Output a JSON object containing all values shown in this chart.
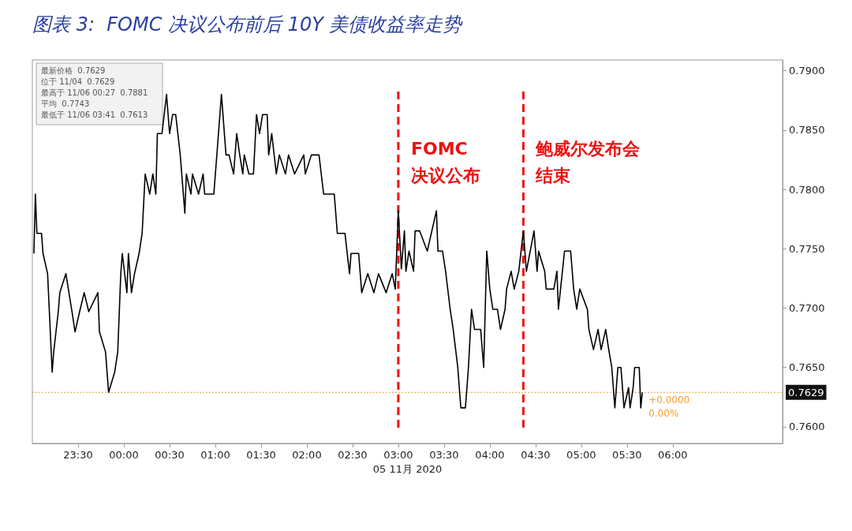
{
  "chart_data": {
    "type": "line",
    "title": "图表 3:  FOMC 决议公布前后 10Y 美债收益率走势",
    "xlabel": "05 11月 2020",
    "x": [
      "2020-11-04T23:01",
      "2020-11-04T23:02",
      "2020-11-04T23:03",
      "2020-11-04T23:06",
      "2020-11-04T23:07",
      "2020-11-04T23:10",
      "2020-11-04T23:13",
      "2020-11-04T23:14",
      "2020-11-04T23:17",
      "2020-11-04T23:18",
      "2020-11-04T23:22",
      "2020-11-04T23:26",
      "2020-11-04T23:28",
      "2020-11-04T23:31",
      "2020-11-04T23:34",
      "2020-11-04T23:37",
      "2020-11-04T23:43",
      "2020-11-04T23:44",
      "2020-11-04T23:48",
      "2020-11-04T23:50",
      "2020-11-04T23:54",
      "2020-11-04T23:56",
      "2020-11-04T23:58",
      "2020-11-04T23:59",
      "2020-11-05T00:02",
      "2020-11-05T00:03",
      "2020-11-05T00:05",
      "2020-11-05T00:07",
      "2020-11-05T00:10",
      "2020-11-05T00:12",
      "2020-11-05T00:14",
      "2020-11-05T00:17",
      "2020-11-05T00:19",
      "2020-11-05T00:21",
      "2020-11-05T00:22",
      "2020-11-05T00:25",
      "2020-11-05T00:28",
      "2020-11-05T00:30",
      "2020-11-05T00:32",
      "2020-11-05T00:34",
      "2020-11-05T00:37",
      "2020-11-05T00:40",
      "2020-11-05T00:41",
      "2020-11-05T00:44",
      "2020-11-05T00:45",
      "2020-11-05T00:49",
      "2020-11-05T00:52",
      "2020-11-05T00:53",
      "2020-11-05T00:59",
      "2020-11-05T01:01",
      "2020-11-05T01:04",
      "2020-11-05T01:07",
      "2020-11-05T01:09",
      "2020-11-05T01:12",
      "2020-11-05T01:14",
      "2020-11-05T01:16",
      "2020-11-05T01:18",
      "2020-11-05T01:19",
      "2020-11-05T01:22",
      "2020-11-05T01:25",
      "2020-11-05T01:27",
      "2020-11-05T01:29",
      "2020-11-05T01:31",
      "2020-11-05T01:34",
      "2020-11-05T01:35",
      "2020-11-05T01:37",
      "2020-11-05T01:40",
      "2020-11-05T01:42",
      "2020-11-05T01:46",
      "2020-11-05T01:48",
      "2020-11-05T01:52",
      "2020-11-05T01:58",
      "2020-11-05T01:59",
      "2020-11-05T02:03",
      "2020-11-05T02:08",
      "2020-11-05T02:11",
      "2020-11-05T02:18",
      "2020-11-05T02:20",
      "2020-11-05T02:25",
      "2020-11-05T02:28",
      "2020-11-05T02:29",
      "2020-11-05T02:34",
      "2020-11-05T02:36",
      "2020-11-05T02:40",
      "2020-11-05T02:44",
      "2020-11-05T02:47",
      "2020-11-05T02:52",
      "2020-11-05T02:56",
      "2020-11-05T02:58",
      "2020-11-05T03:00",
      "2020-11-05T03:02",
      "2020-11-05T03:04",
      "2020-11-05T03:05",
      "2020-11-05T03:07",
      "2020-11-05T03:10",
      "2020-11-05T03:11",
      "2020-11-05T03:14",
      "2020-11-05T03:19",
      "2020-11-05T03:22",
      "2020-11-05T03:25",
      "2020-11-05T03:26",
      "2020-11-05T03:29",
      "2020-11-05T03:31",
      "2020-11-05T03:34",
      "2020-11-05T03:36",
      "2020-11-05T03:39",
      "2020-11-05T03:41",
      "2020-11-05T03:44",
      "2020-11-05T03:46",
      "2020-11-05T03:48",
      "2020-11-05T03:50",
      "2020-11-05T03:54",
      "2020-11-05T03:56",
      "2020-11-05T03:58",
      "2020-11-05T04:00",
      "2020-11-05T04:02",
      "2020-11-05T04:05",
      "2020-11-05T04:07",
      "2020-11-05T04:10",
      "2020-11-05T04:11",
      "2020-11-05T04:14",
      "2020-11-05T04:16",
      "2020-11-05T04:19",
      "2020-11-05T04:22",
      "2020-11-05T04:24",
      "2020-11-05T04:29",
      "2020-11-05T04:31",
      "2020-11-05T04:32",
      "2020-11-05T04:36",
      "2020-11-05T04:37",
      "2020-11-05T04:42",
      "2020-11-05T04:44",
      "2020-11-05T04:45",
      "2020-11-05T04:49",
      "2020-11-05T04:53",
      "2020-11-05T04:55",
      "2020-11-05T04:57",
      "2020-11-05T04:59",
      "2020-11-05T05:04",
      "2020-11-05T05:05",
      "2020-11-05T05:08",
      "2020-11-05T05:11",
      "2020-11-05T05:13",
      "2020-11-05T05:16",
      "2020-11-05T05:18",
      "2020-11-05T05:20",
      "2020-11-05T05:22",
      "2020-11-05T05:24",
      "2020-11-05T05:26",
      "2020-11-05T05:28",
      "2020-11-05T05:31",
      "2020-11-05T05:32",
      "2020-11-05T05:34",
      "2020-11-05T05:35",
      "2020-11-05T05:38",
      "2020-11-05T05:39",
      "2020-11-05T05:40"
    ],
    "series": [
      {
        "color": "#000000",
        "values": [
          0.7746,
          0.7796,
          0.7763,
          0.7763,
          0.7746,
          0.7729,
          0.7646,
          0.7663,
          0.7697,
          0.7713,
          0.7729,
          0.7697,
          0.768,
          0.7697,
          0.7713,
          0.7697,
          0.7713,
          0.768,
          0.7663,
          0.7629,
          0.7646,
          0.7663,
          0.7729,
          0.7746,
          0.7713,
          0.7746,
          0.7713,
          0.7729,
          0.7746,
          0.7763,
          0.7813,
          0.7796,
          0.7813,
          0.7796,
          0.7847,
          0.7847,
          0.788,
          0.7847,
          0.7863,
          0.7863,
          0.7829,
          0.778,
          0.7813,
          0.7796,
          0.7813,
          0.7796,
          0.7813,
          0.7796,
          0.7796,
          0.7829,
          0.788,
          0.7829,
          0.7829,
          0.7813,
          0.7847,
          0.7829,
          0.7813,
          0.7829,
          0.7813,
          0.7813,
          0.7863,
          0.7847,
          0.7863,
          0.7863,
          0.7829,
          0.7847,
          0.7813,
          0.7829,
          0.7813,
          0.7829,
          0.7813,
          0.7829,
          0.7813,
          0.7829,
          0.7829,
          0.7796,
          0.7796,
          0.7763,
          0.7763,
          0.7729,
          0.7746,
          0.7746,
          0.7713,
          0.7729,
          0.7713,
          0.7729,
          0.7713,
          0.7729,
          0.7716,
          0.7782,
          0.7733,
          0.7765,
          0.7731,
          0.7748,
          0.7731,
          0.7765,
          0.7765,
          0.7748,
          0.7765,
          0.7782,
          0.7748,
          0.7748,
          0.7731,
          0.7699,
          0.7682,
          0.765,
          0.7616,
          0.7616,
          0.765,
          0.7699,
          0.7682,
          0.7682,
          0.765,
          0.7748,
          0.7716,
          0.7699,
          0.7699,
          0.7682,
          0.7699,
          0.7716,
          0.7731,
          0.7716,
          0.7731,
          0.7765,
          0.7731,
          0.7765,
          0.7731,
          0.7748,
          0.7731,
          0.7716,
          0.7716,
          0.7731,
          0.7699,
          0.7748,
          0.7748,
          0.7716,
          0.7699,
          0.7716,
          0.7699,
          0.7682,
          0.7665,
          0.7682,
          0.7665,
          0.7682,
          0.7665,
          0.765,
          0.7616,
          0.765,
          0.765,
          0.7616,
          0.7633,
          0.7616,
          0.7633,
          0.765,
          0.765,
          0.7616,
          0.7629
        ]
      }
    ],
    "xlim": [
      "2020-11-04T23:00",
      "2020-11-05T07:12"
    ],
    "xticks": [
      {
        "value": "2020-11-04T23:30",
        "label": "23:30"
      },
      {
        "value": "2020-11-05T00:00",
        "label": "00:00"
      },
      {
        "value": "2020-11-05T00:30",
        "label": "00:30"
      },
      {
        "value": "2020-11-05T01:00",
        "label": "01:00"
      },
      {
        "value": "2020-11-05T01:30",
        "label": "01:30"
      },
      {
        "value": "2020-11-05T02:00",
        "label": "02:00"
      },
      {
        "value": "2020-11-05T02:30",
        "label": "02:30"
      },
      {
        "value": "2020-11-05T03:00",
        "label": "03:00"
      },
      {
        "value": "2020-11-05T03:30",
        "label": "03:30"
      },
      {
        "value": "2020-11-05T04:00",
        "label": "04:00"
      },
      {
        "value": "2020-11-05T04:30",
        "label": "04:30"
      },
      {
        "value": "2020-11-05T05:00",
        "label": "05:00"
      },
      {
        "value": "2020-11-05T05:30",
        "label": "05:30"
      },
      {
        "value": "2020-11-05T06:00",
        "label": "06:00"
      }
    ],
    "ylim": [
      0.7586,
      0.7909
    ],
    "yticks": [
      {
        "value": 0.76,
        "label": "0.7600"
      },
      {
        "value": 0.765,
        "label": "0.7650"
      },
      {
        "value": 0.77,
        "label": "0.7700"
      },
      {
        "value": 0.775,
        "label": "0.7750"
      },
      {
        "value": 0.78,
        "label": "0.7800"
      },
      {
        "value": 0.785,
        "label": "0.7850"
      },
      {
        "value": 0.79,
        "label": "0.7900"
      }
    ],
    "ref_lines": [
      {
        "axis": "y",
        "value": 0.7629,
        "label": "0.7629",
        "color": "#f0a030",
        "line_style": "dotted"
      },
      {
        "axis": "x",
        "value": "2020-11-05T03:00",
        "label": "FOMC\n决议公布",
        "color": "#ee1111",
        "line_style": "dashed"
      },
      {
        "axis": "x",
        "value": "2020-11-05T04:22",
        "label": "鲍威尔发布会结束",
        "color": "#ee1111",
        "line_style": "dashed"
      }
    ],
    "annotations": [
      "最新价格  0.7629",
      "位于 11/04  0.7629",
      "最高于 11/06 00:27  0.7881",
      "平均  0.7743",
      "最低于 11/06 03:41  0.7613",
      {
        "text": "+0.0000",
        "x": "2020-11-05T05:40",
        "y": 0.7629
      },
      {
        "text": "0.00%",
        "x": "2020-11-05T05:40",
        "y": 0.7629
      }
    ],
    "grid": false,
    "line_style": "solid",
    "marker": "none"
  }
}
